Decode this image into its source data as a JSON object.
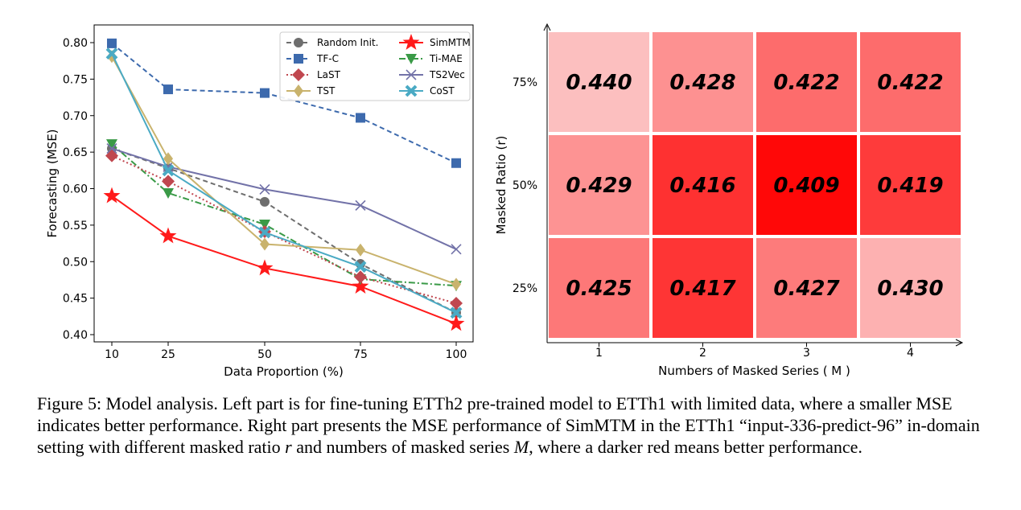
{
  "chart_data": [
    {
      "type": "line",
      "xlabel": "Data Proportion (%)",
      "ylabel": "Forecasting (MSE)",
      "x": [
        10,
        25,
        50,
        75,
        100
      ],
      "x_tick_labels": [
        "10",
        "25",
        "50",
        "75",
        "100"
      ],
      "ylim": [
        0.4,
        0.81
      ],
      "y_ticks": [
        "0.40",
        "0.45",
        "0.50",
        "0.55",
        "0.60",
        "0.65",
        "0.70",
        "0.75",
        "0.80"
      ],
      "legend_position": "top-right",
      "series": [
        {
          "name": "Random Init.",
          "values": [
            0.655,
            0.628,
            0.582,
            0.497,
            0.43
          ],
          "color": "#6e6e6e",
          "dash": "6,4",
          "marker": "circle"
        },
        {
          "name": "SimMTM",
          "values": [
            0.59,
            0.535,
            0.491,
            0.466,
            0.415
          ],
          "color": "#ff1a1a",
          "dash": "",
          "marker": "star"
        },
        {
          "name": "TF-C",
          "values": [
            0.799,
            0.736,
            0.731,
            0.697,
            0.635
          ],
          "color": "#3d6aad",
          "dash": "6,4",
          "marker": "square"
        },
        {
          "name": "Ti-MAE",
          "values": [
            0.661,
            0.594,
            0.551,
            0.476,
            0.467
          ],
          "color": "#3a9a47",
          "dash": "8,3,2,3",
          "marker": "triangle-down"
        },
        {
          "name": "LaST",
          "values": [
            0.645,
            0.61,
            0.541,
            0.479,
            0.443
          ],
          "color": "#c0474f",
          "dash": "2,3",
          "marker": "diamond"
        },
        {
          "name": "TS2Vec",
          "values": [
            0.655,
            0.63,
            0.599,
            0.577,
            0.517
          ],
          "color": "#7272a8",
          "dash": "",
          "marker": "x"
        },
        {
          "name": "TST",
          "values": [
            0.781,
            0.641,
            0.524,
            0.516,
            0.469
          ],
          "color": "#c9b36d",
          "dash": "",
          "marker": "thin-diamond"
        },
        {
          "name": "CoST",
          "values": [
            0.785,
            0.625,
            0.54,
            0.493,
            0.43
          ],
          "color": "#4aaac4",
          "dash": "",
          "marker": "x-filled"
        }
      ]
    },
    {
      "type": "heatmap",
      "xlabel": "Numbers of Masked Series ( M )",
      "ylabel": "Masked Ratio (r)",
      "x_categories": [
        "1",
        "2",
        "3",
        "4"
      ],
      "y_categories": [
        "75%",
        "50%",
        "25%"
      ],
      "cells": [
        {
          "row": 0,
          "col": 0,
          "label": "0.440",
          "color": "#fcbfbf"
        },
        {
          "row": 0,
          "col": 1,
          "label": "0.428",
          "color": "#fd9191"
        },
        {
          "row": 0,
          "col": 2,
          "label": "0.422",
          "color": "#fd6c6c"
        },
        {
          "row": 0,
          "col": 3,
          "label": "0.422",
          "color": "#fd6c6c"
        },
        {
          "row": 1,
          "col": 0,
          "label": "0.429",
          "color": "#fd9393"
        },
        {
          "row": 1,
          "col": 1,
          "label": "0.416",
          "color": "#fe3131"
        },
        {
          "row": 1,
          "col": 2,
          "label": "0.409",
          "color": "#ff0808"
        },
        {
          "row": 1,
          "col": 3,
          "label": "0.419",
          "color": "#fe3b3b"
        },
        {
          "row": 2,
          "col": 0,
          "label": "0.425",
          "color": "#fd7878"
        },
        {
          "row": 2,
          "col": 1,
          "label": "0.417",
          "color": "#fe3535"
        },
        {
          "row": 2,
          "col": 2,
          "label": "0.427",
          "color": "#fd7b7b"
        },
        {
          "row": 2,
          "col": 3,
          "label": "0.430",
          "color": "#fdb1b1"
        }
      ]
    }
  ],
  "caption": {
    "part1": "Figure 5: Model analysis. Left part is for fine-tuning ETTh2 pre-trained model to ETTh1 with limited data, where a smaller MSE indicates better performance. Right part presents the MSE performance of SimMTM in the ETTh1 “input-336-predict-96” in-domain setting with different masked ratio",
    "var_r": "r",
    "part2": "and numbers of masked series",
    "var_M": "M",
    "part3": ", where a darker red means better performance."
  }
}
